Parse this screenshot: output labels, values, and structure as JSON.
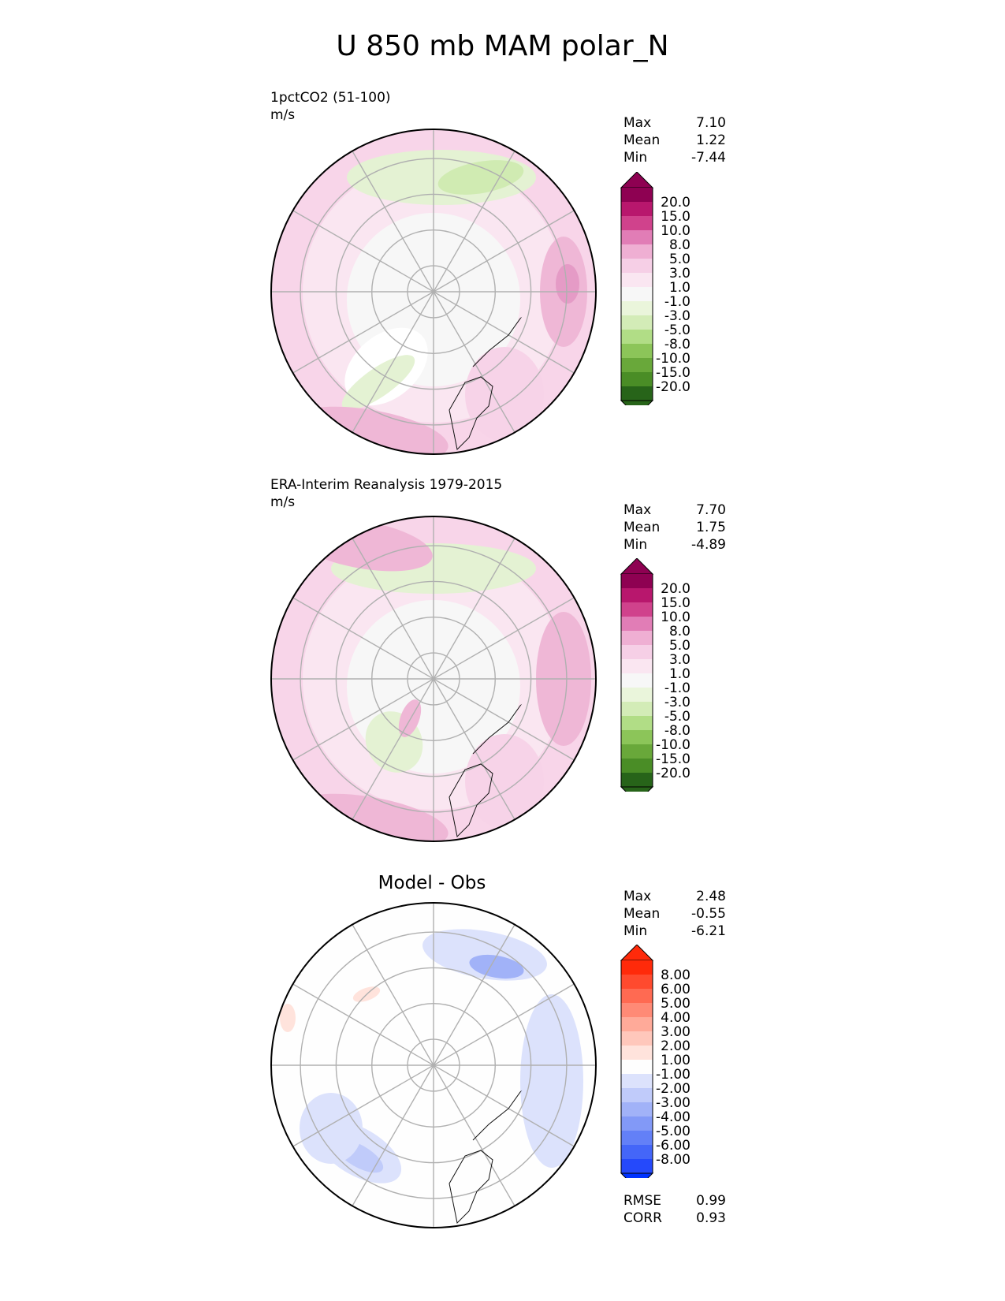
{
  "figure": {
    "title": "U 850 mb MAM polar_N"
  },
  "panels": [
    {
      "id": "model",
      "label_line1": "1pctCO2 (51-100)",
      "label_line2": "m/s",
      "center_title": "",
      "stats": [
        {
          "name": "Max",
          "value": "7.10"
        },
        {
          "name": "Mean",
          "value": "1.22"
        },
        {
          "name": "Min",
          "value": "-7.44"
        }
      ],
      "bottom_stats": []
    },
    {
      "id": "obs",
      "label_line1": "ERA-Interim Reanalysis 1979-2015",
      "label_line2": "m/s",
      "center_title": "",
      "stats": [
        {
          "name": "Max",
          "value": "7.70"
        },
        {
          "name": "Mean",
          "value": "1.75"
        },
        {
          "name": "Min",
          "value": "-4.89"
        }
      ],
      "bottom_stats": []
    },
    {
      "id": "diff",
      "label_line1": "",
      "label_line2": "",
      "center_title": "Model - Obs",
      "stats": [
        {
          "name": "Max",
          "value": "2.48"
        },
        {
          "name": "Mean",
          "value": "-0.55"
        },
        {
          "name": "Min",
          "value": "-6.21"
        }
      ],
      "bottom_stats": [
        {
          "name": "RMSE",
          "value": "0.99"
        },
        {
          "name": "CORR",
          "value": "0.93"
        }
      ]
    }
  ],
  "colorbars": {
    "field": {
      "levels": [
        "20.0",
        "15.0",
        "10.0",
        "8.0",
        "5.0",
        "3.0",
        "1.0",
        "-1.0",
        "-3.0",
        "-5.0",
        "-8.0",
        "-10.0",
        "-15.0",
        "-20.0"
      ],
      "colors": [
        "#8e0152",
        "#b8176d",
        "#d0428c",
        "#e17db6",
        "#efafd3",
        "#f6cfe6",
        "#fae6f1",
        "#f7f7f7",
        "#eaf5db",
        "#d3ecb7",
        "#b1dd86",
        "#8cc559",
        "#69a83a",
        "#4a8d26",
        "#276419"
      ],
      "over_color": "#8e0152",
      "under_color": "#276419"
    },
    "diff": {
      "levels": [
        "8.00",
        "6.00",
        "5.00",
        "4.00",
        "3.00",
        "2.00",
        "1.00",
        "-1.00",
        "-2.00",
        "-3.00",
        "-4.00",
        "-5.00",
        "-6.00",
        "-8.00"
      ],
      "colors": [
        "#ff2a0a",
        "#ff4a2e",
        "#ff6a52",
        "#ff8a76",
        "#ffaa99",
        "#ffc7bb",
        "#ffe3dc",
        "#fefefe",
        "#dce2fc",
        "#c0cbfa",
        "#a1b2f8",
        "#8299f7",
        "#6380f7",
        "#4466f8",
        "#2549fb"
      ],
      "over_color": "#ff2a0a",
      "under_color": "#0033ff"
    }
  }
}
